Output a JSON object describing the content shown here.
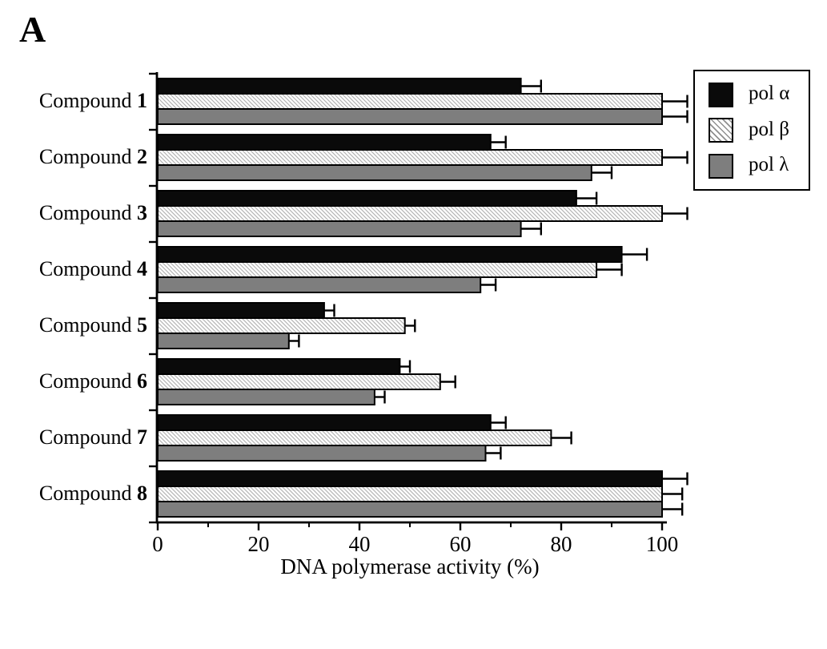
{
  "panel_label": "A",
  "legend": {
    "items": [
      {
        "label": "pol α",
        "swatch": "black"
      },
      {
        "label": "pol β",
        "swatch": "hatch"
      },
      {
        "label": "pol λ",
        "swatch": "gray"
      }
    ]
  },
  "chart_data": {
    "type": "bar",
    "orientation": "horizontal",
    "title": "",
    "xlabel": "DNA polymerase activity (%)",
    "ylabel": "",
    "xlim": [
      0,
      105
    ],
    "x_major_ticks": [
      0,
      20,
      40,
      60,
      80,
      100
    ],
    "x_minor_ticks": [
      10,
      30,
      50,
      70,
      90
    ],
    "x_tick_labels": [
      "0",
      "20",
      "40",
      "60",
      "80",
      "100"
    ],
    "grid": false,
    "legend_position": "top-right",
    "categories": [
      "Compound 1",
      "Compound 2",
      "Compound 3",
      "Compound 4",
      "Compound 5",
      "Compound 6",
      "Compound 7",
      "Compound 8"
    ],
    "series": [
      {
        "name": "pol α",
        "style": "black",
        "color": "#0a0a0a",
        "values": [
          72,
          66,
          83,
          92,
          33,
          48,
          66,
          100
        ],
        "errors": [
          4,
          3,
          4,
          5,
          2,
          2,
          3,
          5
        ]
      },
      {
        "name": "pol β",
        "style": "hatch",
        "color": "#f4f4f4",
        "hatch_line_color": "#b4b4b4",
        "values": [
          100,
          100,
          100,
          87,
          49,
          56,
          78,
          100
        ],
        "errors": [
          5,
          5,
          5,
          5,
          2,
          3,
          4,
          4
        ]
      },
      {
        "name": "pol λ",
        "style": "gray",
        "color": "#7e7e7e",
        "values": [
          100,
          86,
          72,
          64,
          26,
          43,
          65,
          100
        ],
        "errors": [
          5,
          4,
          4,
          3,
          2,
          2,
          3,
          4
        ]
      }
    ],
    "axis_color": "#000000",
    "bar_outline_color": "#000000"
  }
}
